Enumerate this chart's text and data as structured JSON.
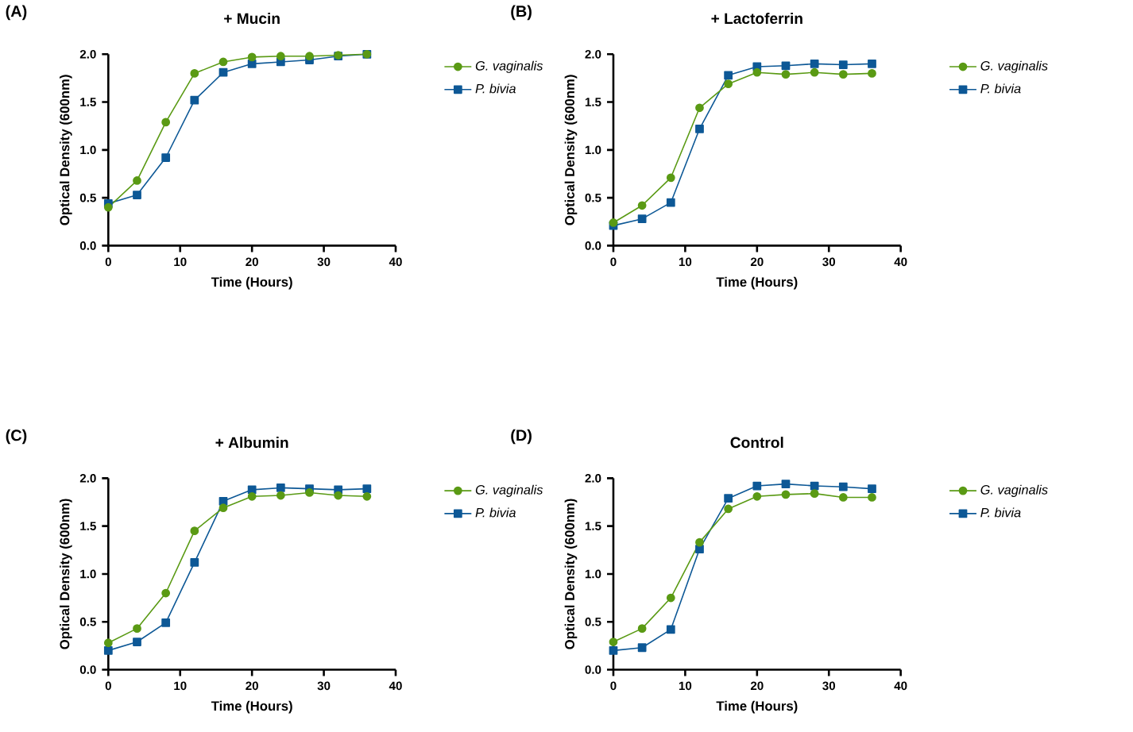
{
  "chart_data": [
    {
      "type": "line",
      "title": "+ Mucin",
      "xlabel": "Time (Hours)",
      "ylabel": "Optical Density (600nm)",
      "annotations": [
        "(A)"
      ],
      "x": [
        0,
        4,
        8,
        12,
        16,
        20,
        24,
        28,
        32,
        36
      ],
      "xlim": [
        0,
        40
      ],
      "xticks": [
        0,
        10,
        20,
        30,
        40
      ],
      "ylim": [
        0,
        2
      ],
      "yticks": [
        {
          "value": 0,
          "label": "0.0"
        },
        {
          "value": 0.5,
          "label": "0.5"
        },
        {
          "value": 1,
          "label": "1.0"
        },
        {
          "value": 1.5,
          "label": "1.5"
        },
        {
          "value": 2,
          "label": "2.0"
        }
      ],
      "legend": "right",
      "grid": false,
      "series": [
        {
          "name": "G. vaginalis",
          "color": "#5a9a14",
          "marker": "circle",
          "values": [
            0.4,
            0.68,
            1.29,
            1.8,
            1.92,
            1.97,
            1.98,
            1.98,
            1.99,
            2.0
          ]
        },
        {
          "name": "P. bivia",
          "color": "#0d5896",
          "marker": "square",
          "values": [
            0.44,
            0.53,
            0.92,
            1.52,
            1.81,
            1.9,
            1.92,
            1.94,
            1.98,
            2.0
          ]
        }
      ]
    },
    {
      "type": "line",
      "title": "+ Lactoferrin",
      "xlabel": "Time (Hours)",
      "ylabel": "Optical Density (600nm)",
      "annotations": [
        "(B)"
      ],
      "x": [
        0,
        4,
        8,
        12,
        16,
        20,
        24,
        28,
        32,
        36
      ],
      "xlim": [
        0,
        40
      ],
      "xticks": [
        0,
        10,
        20,
        30,
        40
      ],
      "ylim": [
        0,
        2
      ],
      "yticks": [
        {
          "value": 0,
          "label": "0.0"
        },
        {
          "value": 0.5,
          "label": "0.5"
        },
        {
          "value": 1,
          "label": "1.0"
        },
        {
          "value": 1.5,
          "label": "1.5"
        },
        {
          "value": 2,
          "label": "2.0"
        }
      ],
      "legend": "right",
      "grid": false,
      "series": [
        {
          "name": "G. vaginalis",
          "color": "#5a9a14",
          "marker": "circle",
          "values": [
            0.24,
            0.42,
            0.71,
            1.44,
            1.69,
            1.81,
            1.79,
            1.81,
            1.79,
            1.8
          ]
        },
        {
          "name": "P. bivia",
          "color": "#0d5896",
          "marker": "square",
          "values": [
            0.21,
            0.28,
            0.45,
            1.22,
            1.78,
            1.87,
            1.88,
            1.9,
            1.89,
            1.9
          ]
        }
      ]
    },
    {
      "type": "line",
      "title": "+ Albumin",
      "xlabel": "Time (Hours)",
      "ylabel": "Optical Density (600nm)",
      "annotations": [
        "(C)"
      ],
      "x": [
        0,
        4,
        8,
        12,
        16,
        20,
        24,
        28,
        32,
        36
      ],
      "xlim": [
        0,
        40
      ],
      "xticks": [
        0,
        10,
        20,
        30,
        40
      ],
      "ylim": [
        0,
        2
      ],
      "yticks": [
        {
          "value": 0,
          "label": "0.0"
        },
        {
          "value": 0.5,
          "label": "0.5"
        },
        {
          "value": 1,
          "label": "1.0"
        },
        {
          "value": 1.5,
          "label": "1.5"
        },
        {
          "value": 2,
          "label": "2.0"
        }
      ],
      "legend": "right",
      "grid": false,
      "series": [
        {
          "name": "G. vaginalis",
          "color": "#5a9a14",
          "marker": "circle",
          "values": [
            0.28,
            0.43,
            0.8,
            1.45,
            1.69,
            1.81,
            1.82,
            1.85,
            1.82,
            1.81
          ]
        },
        {
          "name": "P. bivia",
          "color": "#0d5896",
          "marker": "square",
          "values": [
            0.2,
            0.29,
            0.49,
            1.12,
            1.76,
            1.88,
            1.9,
            1.89,
            1.88,
            1.89
          ]
        }
      ]
    },
    {
      "type": "line",
      "title": "Control",
      "xlabel": "Time (Hours)",
      "ylabel": "Optical Density (600nm)",
      "annotations": [
        "(D)"
      ],
      "x": [
        0,
        4,
        8,
        12,
        16,
        20,
        24,
        28,
        32,
        36
      ],
      "xlim": [
        0,
        40
      ],
      "xticks": [
        0,
        10,
        20,
        30,
        40
      ],
      "ylim": [
        0,
        2
      ],
      "yticks": [
        {
          "value": 0,
          "label": "0.0"
        },
        {
          "value": 0.5,
          "label": "0.5"
        },
        {
          "value": 1,
          "label": "1.0"
        },
        {
          "value": 1.5,
          "label": "1.5"
        },
        {
          "value": 2,
          "label": "2.0"
        }
      ],
      "legend": "right",
      "grid": false,
      "series": [
        {
          "name": "G. vaginalis",
          "color": "#5a9a14",
          "marker": "circle",
          "values": [
            0.29,
            0.43,
            0.75,
            1.33,
            1.68,
            1.81,
            1.83,
            1.84,
            1.8,
            1.8
          ]
        },
        {
          "name": "P. bivia",
          "color": "#0d5896",
          "marker": "square",
          "values": [
            0.2,
            0.23,
            0.42,
            1.26,
            1.79,
            1.92,
            1.94,
            1.92,
            1.91,
            1.89
          ]
        }
      ]
    }
  ]
}
